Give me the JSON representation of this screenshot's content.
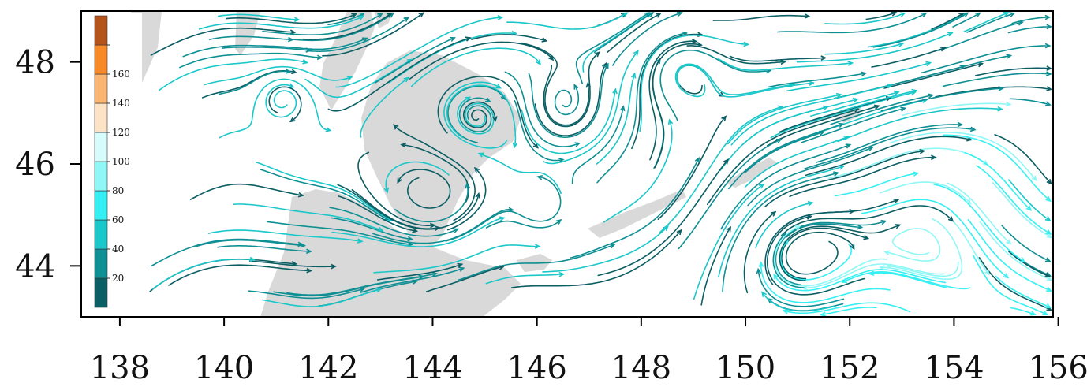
{
  "map": {
    "type": "streamline-map",
    "extent": {
      "lon": [
        137.0,
        156.0
      ],
      "lat": [
        43.0,
        49.0
      ]
    },
    "x_ticks": [
      {
        "value": 138,
        "label": "138"
      },
      {
        "value": 140,
        "label": "140"
      },
      {
        "value": 142,
        "label": "142"
      },
      {
        "value": 144,
        "label": "144"
      },
      {
        "value": 146,
        "label": "146"
      },
      {
        "value": 148,
        "label": "148"
      },
      {
        "value": 150,
        "label": "150"
      },
      {
        "value": 152,
        "label": "152"
      },
      {
        "value": 154,
        "label": "154"
      },
      {
        "value": 156,
        "label": "156"
      }
    ],
    "y_ticks": [
      {
        "value": 44,
        "label": "44"
      },
      {
        "value": 46,
        "label": "46"
      },
      {
        "value": 48,
        "label": "48"
      }
    ],
    "colors": {
      "land": "#d9d9d9",
      "ocean": "#ffffff",
      "frame": "#000000"
    },
    "colorbar": {
      "placement": "upper-left inset",
      "levels": [
        {
          "label": "",
          "color": "#0b5e63"
        },
        {
          "label": "20",
          "color": "#0e8f93"
        },
        {
          "label": "40",
          "color": "#1ac7c9"
        },
        {
          "label": "60",
          "color": "#35f0f2"
        },
        {
          "label": "80",
          "color": "#8ff7f6"
        },
        {
          "label": "100",
          "color": "#d6fcfb"
        },
        {
          "label": "120",
          "color": "#fde3c6"
        },
        {
          "label": "140",
          "color": "#fbb673"
        },
        {
          "label": "160",
          "color": "#f78a25"
        },
        {
          "label": "",
          "color": "#b4531a"
        }
      ]
    },
    "streamline_colors": [
      "#0b5e63",
      "#0e8f93",
      "#1ac7c9",
      "#35f0f2",
      "#8ff7f6"
    ]
  }
}
